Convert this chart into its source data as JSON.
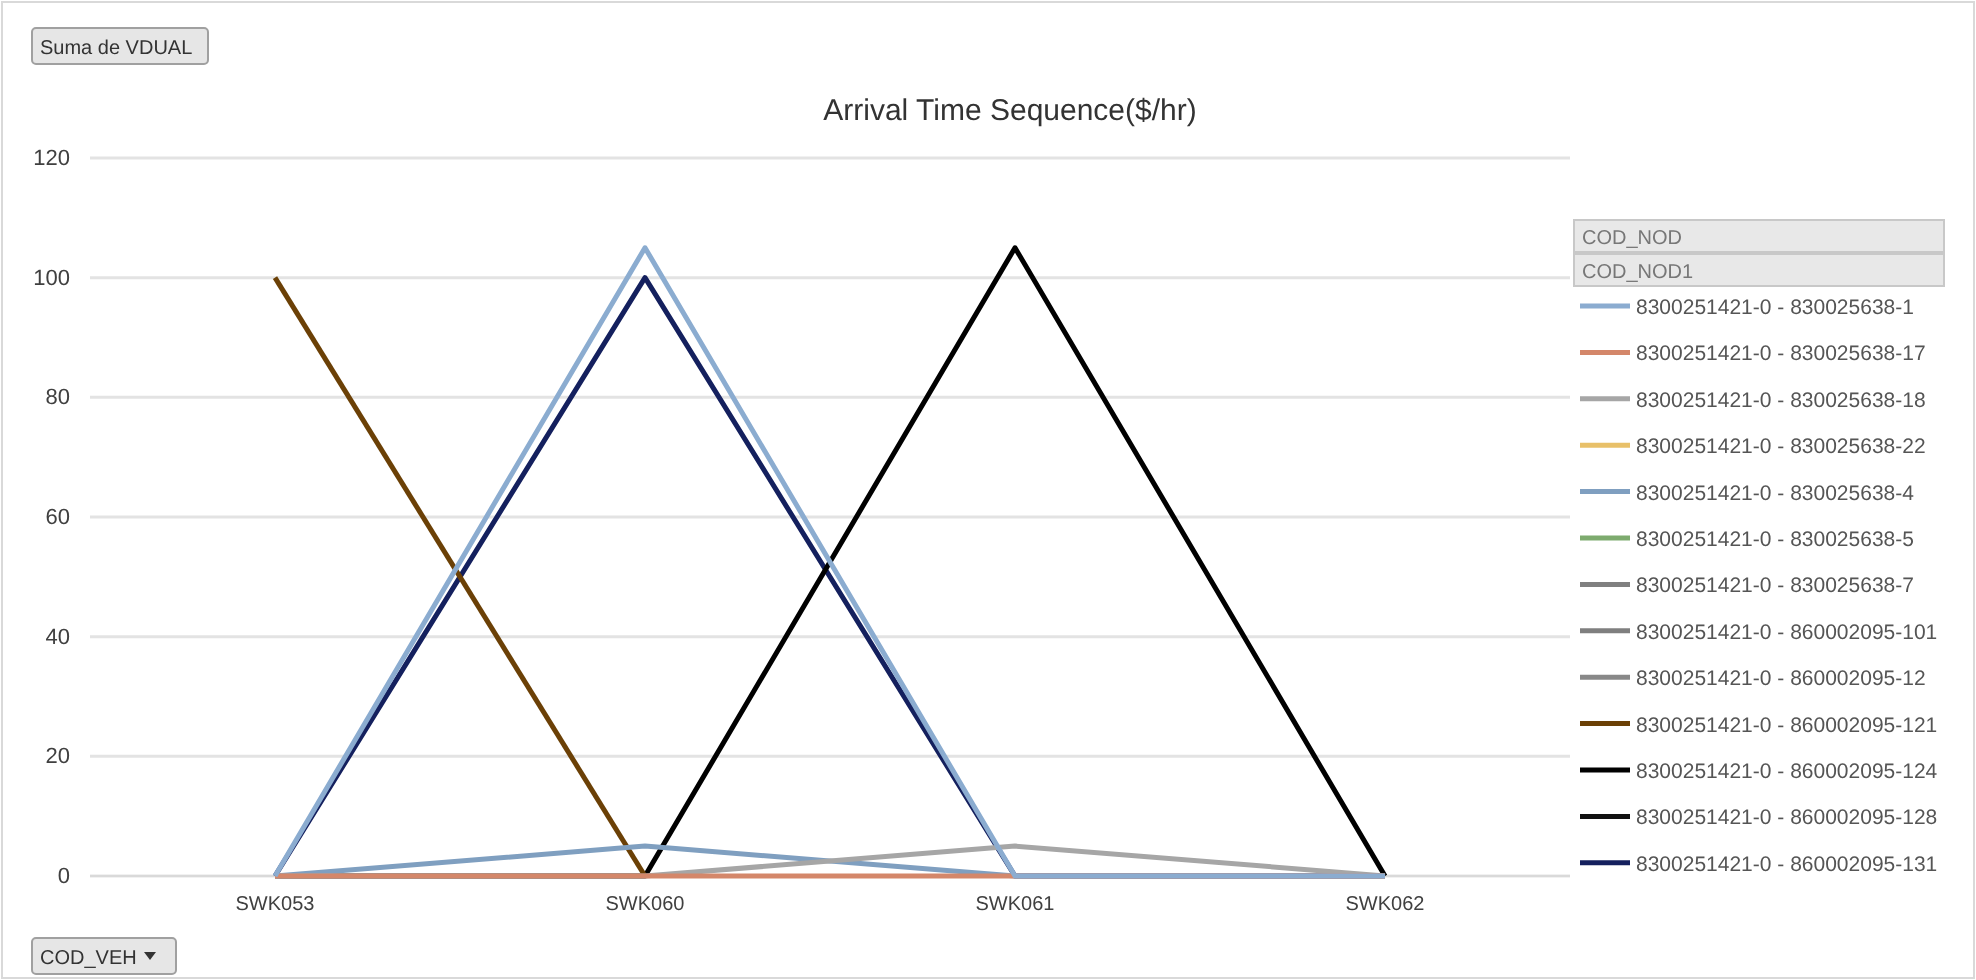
{
  "chart_data": {
    "type": "line",
    "title": "Arrival Time Sequence($/hr)",
    "categories": [
      "SWK053",
      "SWK060",
      "SWK061",
      "SWK062"
    ],
    "ylim": [
      0,
      120
    ],
    "yticks": [
      0,
      20,
      40,
      60,
      80,
      100,
      120
    ],
    "grid": "y",
    "legend": "right",
    "marker": "none",
    "line_style": "solid",
    "annotations": [
      "Suma de VDUAL",
      "COD_VEH",
      "COD_NOD",
      "COD_NOD1"
    ],
    "series": [
      {
        "name": "8300251421-0 - 830025638-1",
        "color": "#8bacd0",
        "values": [
          0,
          105,
          0,
          0
        ]
      },
      {
        "name": "8300251421-0 - 830025638-17",
        "color": "#d4876a",
        "values": [
          0,
          0,
          0,
          0
        ]
      },
      {
        "name": "8300251421-0 - 830025638-18",
        "color": "#a6a6a6",
        "values": [
          0,
          0,
          5,
          0
        ]
      },
      {
        "name": "8300251421-0 - 830025638-22",
        "color": "#e8c069",
        "values": [
          null,
          null,
          null,
          null
        ]
      },
      {
        "name": "8300251421-0 - 830025638-4",
        "color": "#7f9fc0",
        "values": [
          0,
          5,
          0,
          0
        ]
      },
      {
        "name": "8300251421-0 - 830025638-5",
        "color": "#7dab6e",
        "values": [
          null,
          null,
          null,
          null
        ]
      },
      {
        "name": "8300251421-0 - 830025638-7",
        "color": "#808080",
        "values": [
          null,
          null,
          null,
          null
        ]
      },
      {
        "name": "8300251421-0 - 860002095-101",
        "color": "#7f7f7f",
        "values": [
          null,
          null,
          null,
          null
        ]
      },
      {
        "name": "8300251421-0 - 860002095-12",
        "color": "#888888",
        "values": [
          null,
          null,
          null,
          null
        ]
      },
      {
        "name": "8300251421-0 - 860002095-121",
        "color": "#6b4006",
        "values": [
          100,
          0,
          null,
          null
        ]
      },
      {
        "name": "8300251421-0 - 860002095-124",
        "color": "#000000",
        "values": [
          0,
          0,
          105,
          0
        ]
      },
      {
        "name": "8300251421-0 - 860002095-128",
        "color": "#111111",
        "values": [
          null,
          null,
          null,
          null
        ]
      },
      {
        "name": "8300251421-0 - 860002095-131",
        "color": "#14205e",
        "values": [
          0,
          100,
          0,
          0
        ]
      }
    ]
  }
}
